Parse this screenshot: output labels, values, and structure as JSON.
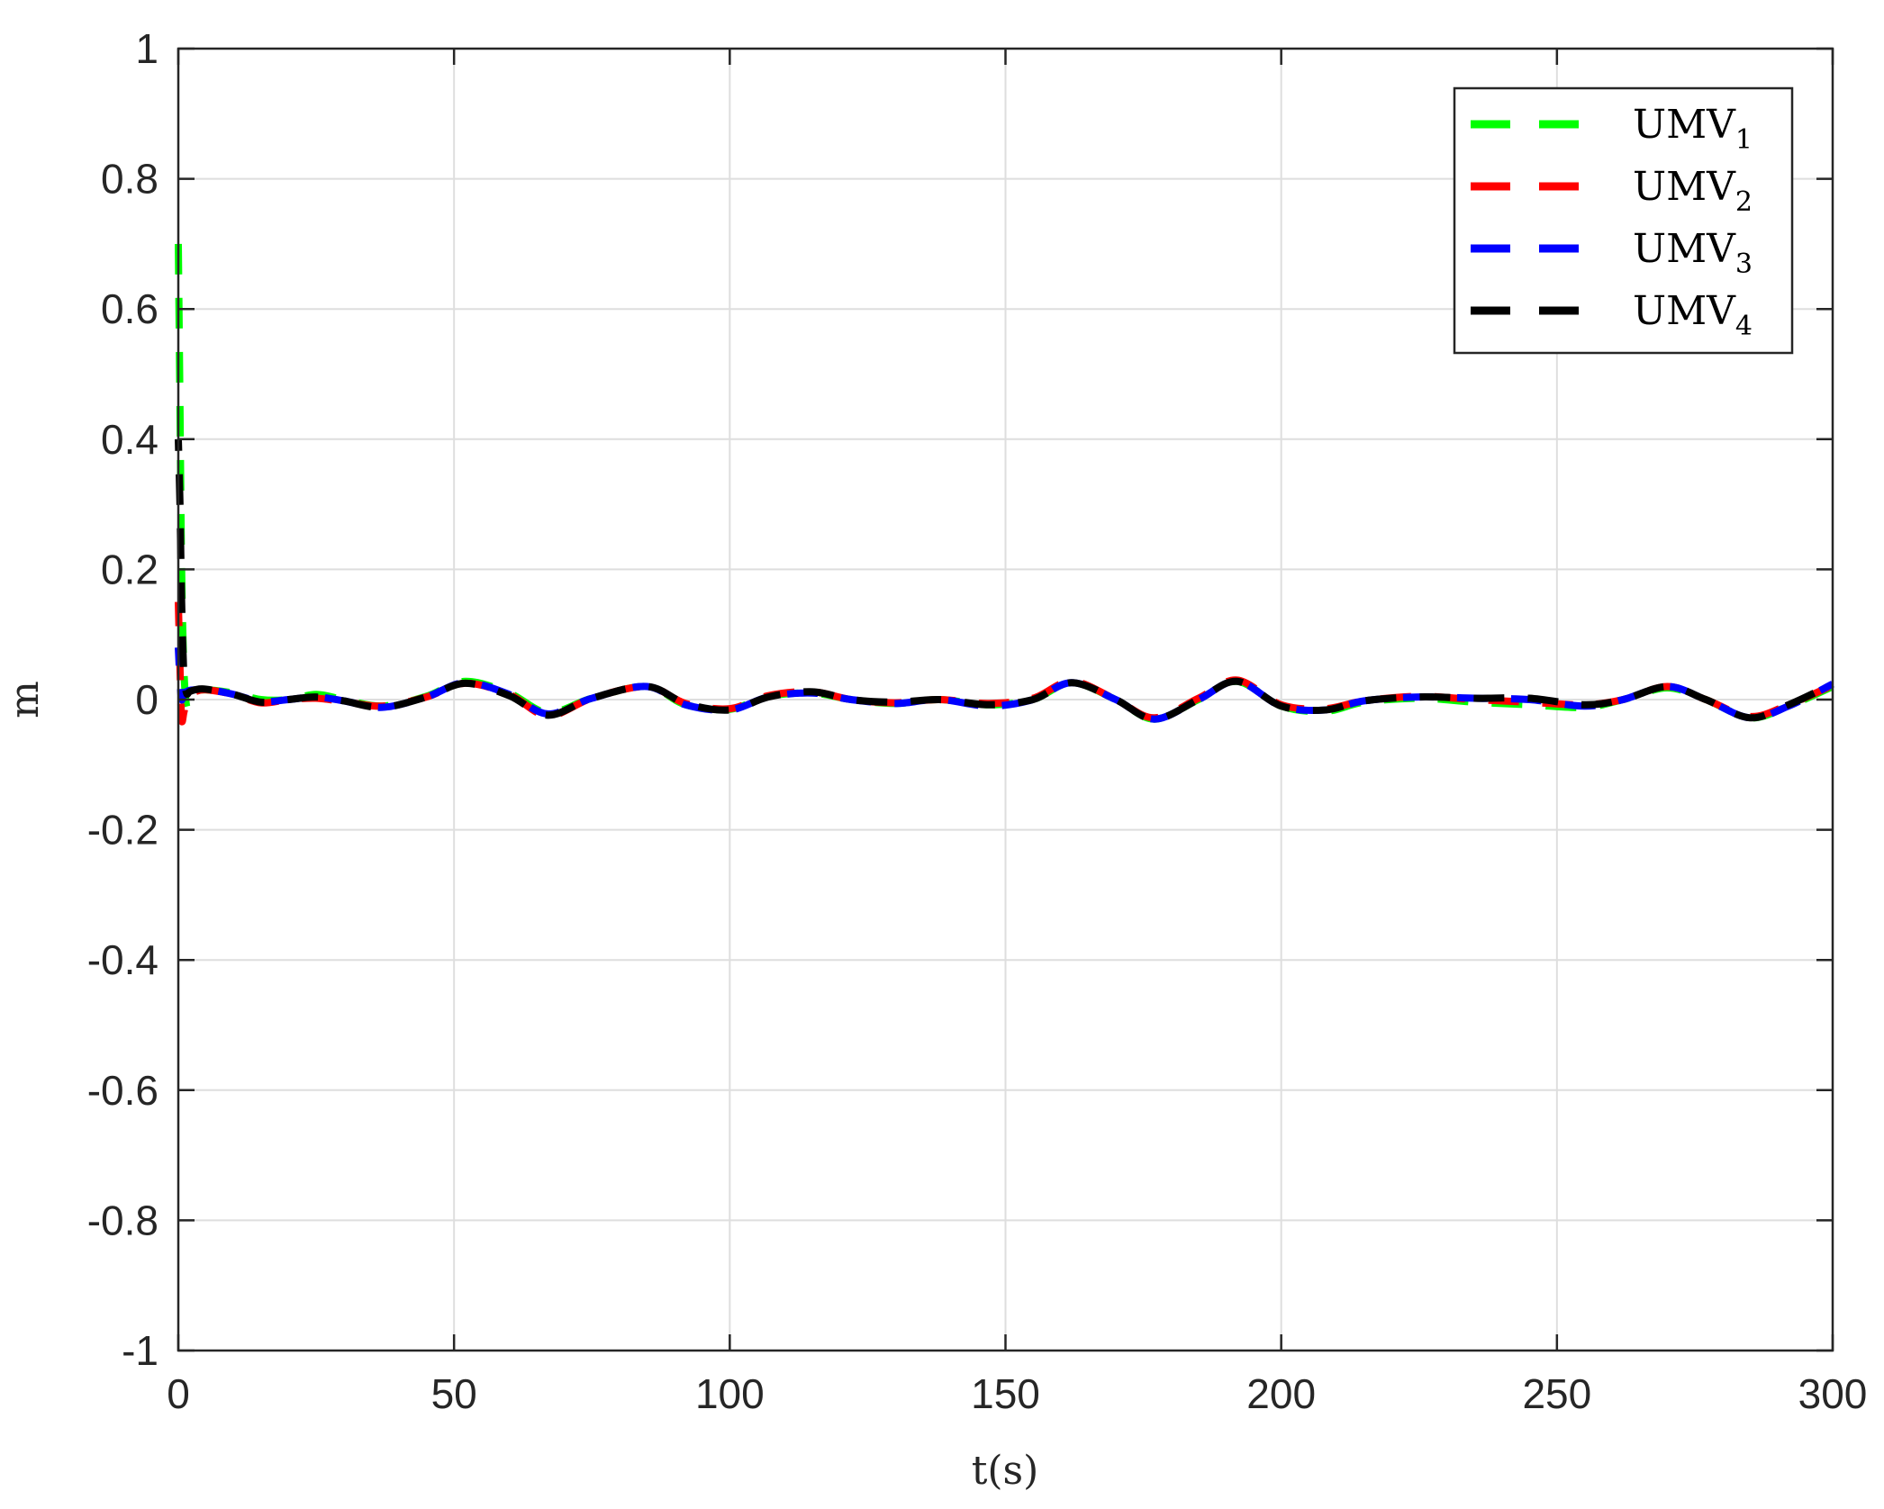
{
  "chart_data": {
    "type": "line",
    "title": "",
    "xlabel": "t(s)",
    "ylabel": "m",
    "xlim": [
      0,
      300
    ],
    "ylim": [
      -1,
      1
    ],
    "xticks": [
      0,
      50,
      100,
      150,
      200,
      250,
      300
    ],
    "xtick_labels": [
      "0",
      "50",
      "100",
      "150",
      "200",
      "250",
      "300"
    ],
    "yticks": [
      -1,
      -0.8,
      -0.6,
      -0.4,
      -0.2,
      0,
      0.2,
      0.4,
      0.6,
      0.8,
      1
    ],
    "ytick_labels": [
      "-1",
      "-0.8",
      "-0.6",
      "-0.4",
      "-0.2",
      "0",
      "0.2",
      "0.4",
      "0.6",
      "0.8",
      "1"
    ],
    "grid": true,
    "legend_position": "top-right",
    "line_style": "dashed",
    "series": [
      {
        "name": "UMV1",
        "label_base": "UMV",
        "label_sub": "1",
        "color": "#00ff00",
        "x": [
          0,
          0.3,
          0.6,
          1,
          1.5,
          2,
          3,
          5,
          10,
          15,
          20,
          25,
          30,
          37,
          45,
          52,
          60,
          67,
          75,
          85,
          92,
          100,
          107,
          115,
          122,
          130,
          138,
          147,
          155,
          162,
          170,
          177,
          185,
          192,
          200,
          208,
          215,
          225,
          235,
          245,
          255,
          262,
          270,
          277,
          285,
          292,
          300
        ],
        "y": [
          0.7,
          0.45,
          0.2,
          0.05,
          -0.01,
          0.005,
          0.012,
          0.015,
          0.01,
          0.0,
          0.0,
          0.008,
          0.0,
          -0.01,
          0.005,
          0.028,
          0.01,
          -0.02,
          0.002,
          0.02,
          -0.008,
          -0.015,
          0.005,
          0.01,
          0.0,
          -0.006,
          0.0,
          -0.008,
          0.0,
          0.026,
          0.0,
          -0.03,
          0.0,
          0.028,
          -0.01,
          -0.018,
          -0.004,
          0.002,
          -0.004,
          -0.008,
          -0.012,
          0.0,
          0.018,
          0.0,
          -0.028,
          -0.01,
          0.02
        ]
      },
      {
        "name": "UMV2",
        "label_base": "UMV",
        "label_sub": "2",
        "color": "#ff0000",
        "x": [
          0,
          0.3,
          0.6,
          1,
          1.5,
          2,
          3,
          5,
          10,
          15,
          20,
          25,
          30,
          37,
          45,
          52,
          60,
          67,
          75,
          85,
          92,
          100,
          107,
          115,
          122,
          130,
          138,
          147,
          155,
          162,
          170,
          177,
          185,
          192,
          200,
          208,
          215,
          225,
          235,
          245,
          255,
          262,
          270,
          277,
          285,
          292,
          300
        ],
        "y": [
          0.15,
          0.05,
          -0.03,
          -0.02,
          0.0,
          0.008,
          0.012,
          0.015,
          0.008,
          -0.005,
          0.0,
          0.002,
          -0.003,
          -0.01,
          0.004,
          0.025,
          0.008,
          -0.025,
          0.002,
          0.02,
          -0.006,
          -0.014,
          0.006,
          0.012,
          0.0,
          -0.005,
          0.0,
          -0.006,
          0.002,
          0.028,
          0.0,
          -0.028,
          0.002,
          0.03,
          -0.008,
          -0.014,
          -0.002,
          0.005,
          0.0,
          -0.004,
          -0.008,
          0.0,
          0.02,
          0.0,
          -0.026,
          -0.008,
          0.022
        ]
      },
      {
        "name": "UMV3",
        "label_base": "UMV",
        "label_sub": "3",
        "color": "#0000ff",
        "x": [
          0,
          0.3,
          0.6,
          1,
          1.5,
          2,
          3,
          5,
          10,
          15,
          20,
          25,
          30,
          37,
          45,
          52,
          60,
          67,
          75,
          85,
          92,
          100,
          107,
          115,
          122,
          130,
          138,
          147,
          155,
          162,
          170,
          177,
          185,
          192,
          200,
          208,
          215,
          225,
          235,
          245,
          255,
          262,
          270,
          277,
          285,
          292,
          300
        ],
        "y": [
          0.08,
          0.03,
          0.0,
          0.01,
          0.012,
          0.014,
          0.015,
          0.016,
          0.008,
          -0.003,
          0.0,
          0.004,
          -0.002,
          -0.012,
          0.004,
          0.026,
          0.008,
          -0.022,
          0.002,
          0.02,
          -0.008,
          -0.016,
          0.004,
          0.01,
          0.0,
          -0.006,
          0.0,
          -0.01,
          0.0,
          0.026,
          0.0,
          -0.03,
          0.0,
          0.028,
          -0.01,
          -0.016,
          -0.002,
          0.004,
          0.002,
          0.0,
          -0.01,
          0.0,
          0.02,
          0.0,
          -0.028,
          -0.01,
          0.024
        ]
      },
      {
        "name": "UMV4",
        "label_base": "UMV",
        "label_sub": "4",
        "color": "#000000",
        "x": [
          0,
          0.3,
          0.6,
          1,
          1.5,
          2,
          3,
          5,
          10,
          15,
          20,
          25,
          30,
          37,
          45,
          52,
          60,
          67,
          75,
          85,
          92,
          100,
          107,
          115,
          122,
          130,
          138,
          147,
          155,
          162,
          170,
          177,
          185,
          192,
          200,
          208,
          215,
          225,
          235,
          245,
          255,
          262,
          270,
          277,
          285,
          292,
          300
        ],
        "y": [
          0.4,
          0.3,
          0.15,
          0.04,
          0.01,
          0.012,
          0.015,
          0.016,
          0.008,
          -0.004,
          0.0,
          0.004,
          -0.002,
          -0.012,
          0.004,
          0.025,
          0.006,
          -0.024,
          0.002,
          0.02,
          -0.006,
          -0.016,
          0.004,
          0.012,
          0.0,
          -0.004,
          0.0,
          -0.008,
          0.0,
          0.026,
          0.0,
          -0.03,
          0.0,
          0.028,
          -0.01,
          -0.016,
          -0.002,
          0.004,
          0.002,
          0.002,
          -0.008,
          0.0,
          0.02,
          0.0,
          -0.028,
          -0.008,
          0.024
        ]
      }
    ]
  }
}
